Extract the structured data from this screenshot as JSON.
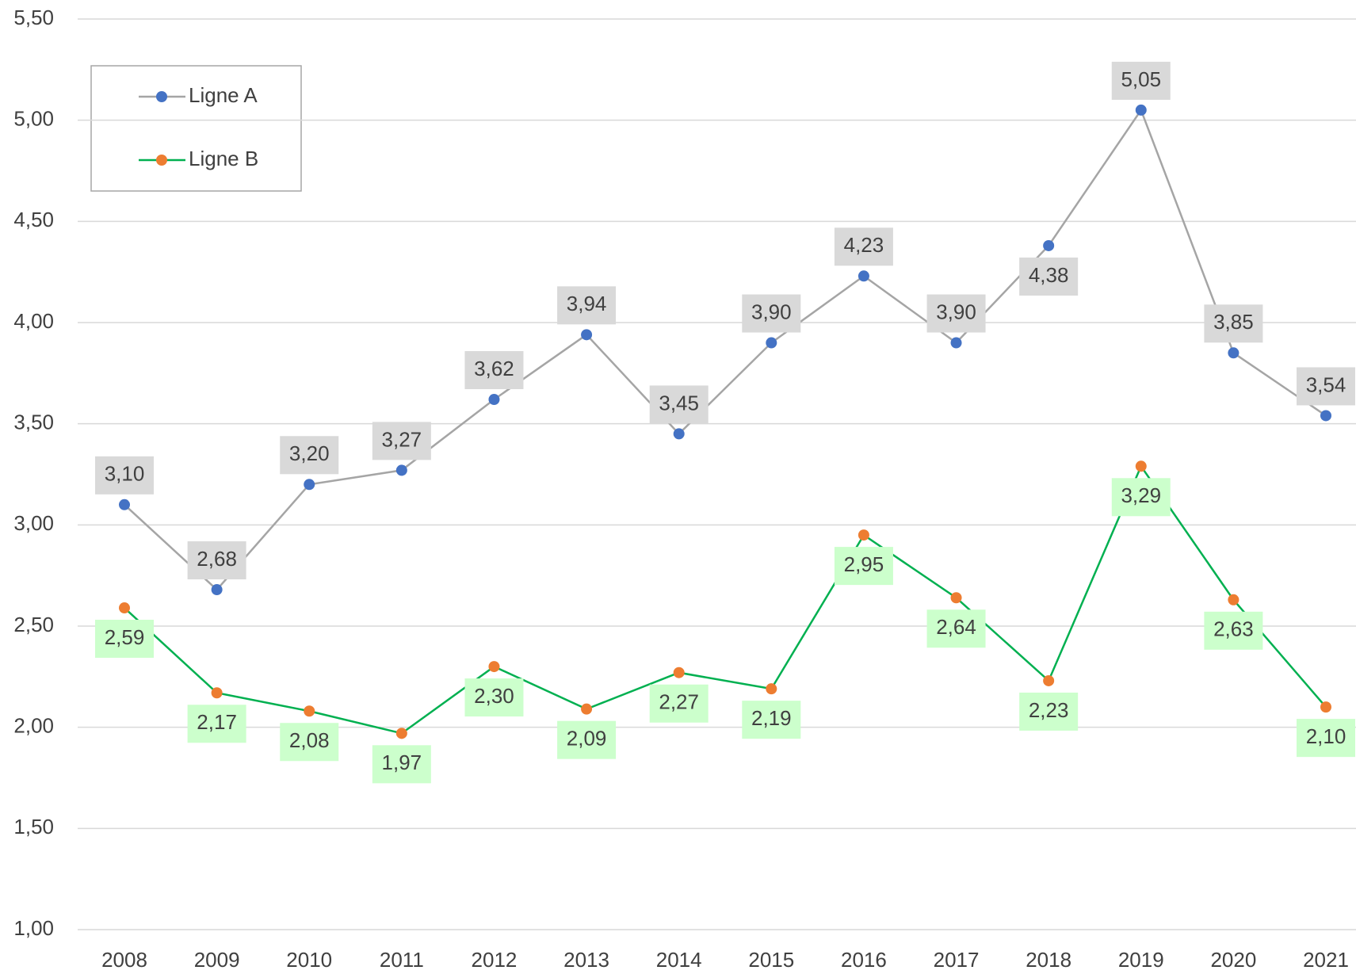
{
  "chart_data": {
    "type": "line",
    "categories": [
      "2008",
      "2009",
      "2010",
      "2011",
      "2012",
      "2013",
      "2014",
      "2015",
      "2016",
      "2017",
      "2018",
      "2019",
      "2020",
      "2021"
    ],
    "series": [
      {
        "name": "Ligne A",
        "color": "#a5a5a5",
        "marker_color": "#4472c4",
        "label_color": "#d9d9d9",
        "values": [
          3.1,
          2.68,
          3.2,
          3.27,
          3.62,
          3.94,
          3.45,
          3.9,
          4.23,
          3.9,
          4.38,
          5.05,
          3.85,
          3.54
        ],
        "value_labels": [
          "3,10",
          "2,68",
          "3,20",
          "3,27",
          "3,62",
          "3,94",
          "3,45",
          "3,90",
          "4,23",
          "3,90",
          "4,38",
          "5,05",
          "3,85",
          "3,54"
        ]
      },
      {
        "name": "Ligne B",
        "color": "#00b050",
        "marker_color": "#ed7d31",
        "label_color": "#ccffcc",
        "values": [
          2.59,
          2.17,
          2.08,
          1.97,
          2.3,
          2.09,
          2.27,
          2.19,
          2.95,
          2.64,
          2.23,
          3.29,
          2.63,
          2.1
        ],
        "value_labels": [
          "2,59",
          "2,17",
          "2,08",
          "1,97",
          "2,30",
          "2,09",
          "2,27",
          "2,19",
          "2,95",
          "2,64",
          "2,23",
          "3,29",
          "2,63",
          "2,10"
        ]
      }
    ],
    "ylim": [
      1.0,
      5.5
    ],
    "yticks": [
      {
        "value": 1.0,
        "label": "1,00"
      },
      {
        "value": 1.5,
        "label": "1,50"
      },
      {
        "value": 2.0,
        "label": "2,00"
      },
      {
        "value": 2.5,
        "label": "2,50"
      },
      {
        "value": 3.0,
        "label": "3,00"
      },
      {
        "value": 3.5,
        "label": "3,50"
      },
      {
        "value": 4.0,
        "label": "4,00"
      },
      {
        "value": 4.5,
        "label": "4,50"
      },
      {
        "value": 5.0,
        "label": "5,00"
      },
      {
        "value": 5.5,
        "label": "5,50"
      }
    ],
    "grid": true,
    "legend": "upper left"
  }
}
